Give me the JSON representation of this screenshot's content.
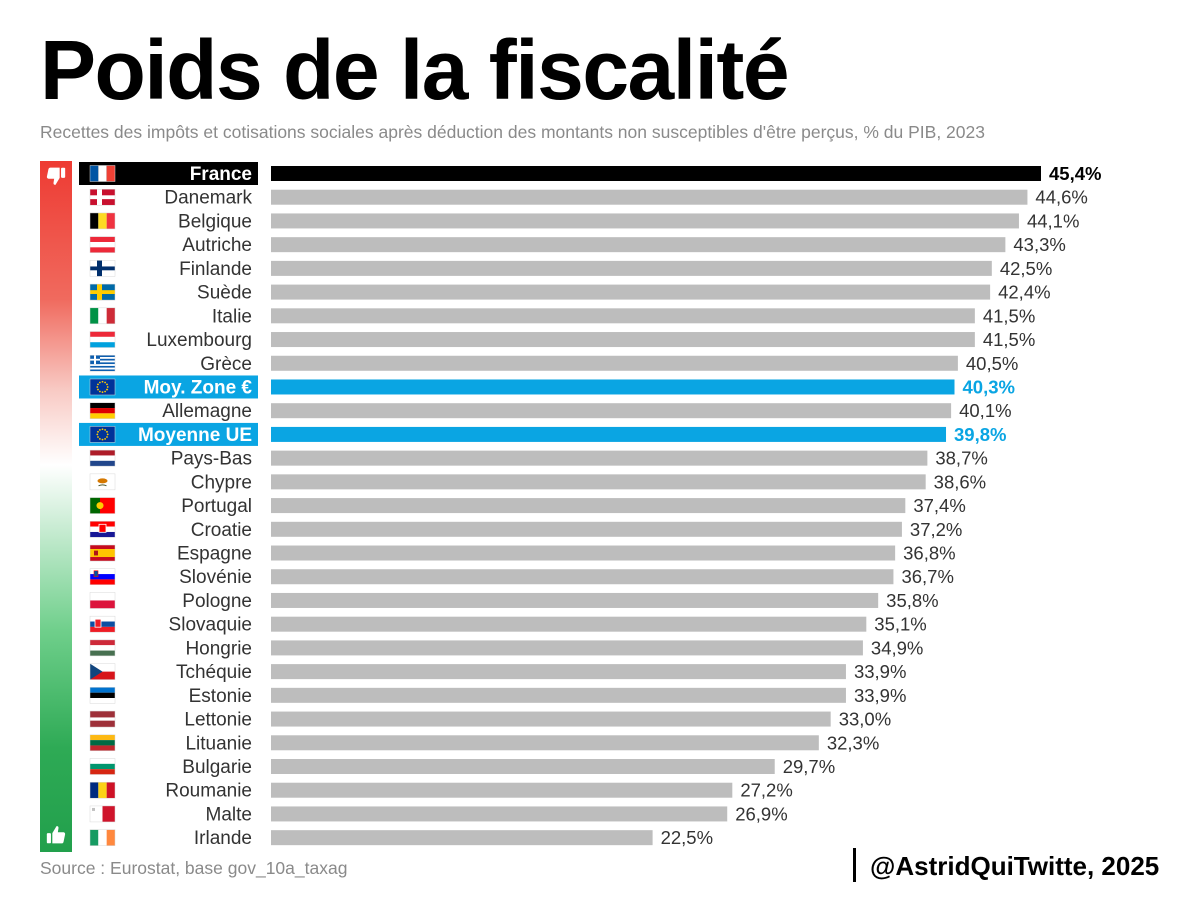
{
  "title": "Poids de la fiscalité",
  "subtitle": "Recettes des impôts et cotisations sociales après déduction des montants non susceptibles d'être perçus, % du PIB, 2023",
  "source": "Source : Eurostat, base gov_10a_taxag",
  "credit": "@AstridQuiTwitte, 2025",
  "scale_icons": {
    "top": "thumbs-down-icon",
    "bottom": "thumbs-up-icon"
  },
  "colors": {
    "default_bar": "#bdbdbd",
    "highlight_france": "#000000",
    "highlight_eu": "#0aa5e3",
    "scale_top": "#ee3b33",
    "scale_bottom": "#22a04c"
  },
  "chart_data": {
    "type": "bar",
    "orientation": "horizontal",
    "categories": [
      "France",
      "Danemark",
      "Belgique",
      "Autriche",
      "Finlande",
      "Suède",
      "Italie",
      "Luxembourg",
      "Grèce",
      "Moy. Zone €",
      "Allemagne",
      "Moyenne UE",
      "Pays-Bas",
      "Chypre",
      "Portugal",
      "Croatie",
      "Espagne",
      "Slovénie",
      "Pologne",
      "Slovaquie",
      "Hongrie",
      "Tchéquie",
      "Estonie",
      "Lettonie",
      "Lituanie",
      "Bulgarie",
      "Roumanie",
      "Malte",
      "Irlande"
    ],
    "values": [
      45.4,
      44.6,
      44.1,
      43.3,
      42.5,
      42.4,
      41.5,
      41.5,
      40.5,
      40.3,
      40.1,
      39.8,
      38.7,
      38.6,
      37.4,
      37.2,
      36.8,
      36.7,
      35.8,
      35.1,
      34.9,
      33.9,
      33.9,
      33.0,
      32.3,
      29.7,
      27.2,
      26.9,
      22.5
    ],
    "value_labels": [
      "45,4%",
      "44,6%",
      "44,1%",
      "43,3%",
      "42,5%",
      "42,4%",
      "41,5%",
      "41,5%",
      "40,5%",
      "40,3%",
      "40,1%",
      "39,8%",
      "38,7%",
      "38,6%",
      "37,4%",
      "37,2%",
      "36,8%",
      "36,7%",
      "35,8%",
      "35,1%",
      "34,9%",
      "33,9%",
      "33,9%",
      "33,0%",
      "32,3%",
      "29,7%",
      "27,2%",
      "26,9%",
      "22,5%"
    ],
    "highlight": [
      "france",
      "",
      "",
      "",
      "",
      "",
      "",
      "",
      "",
      "eu",
      "",
      "eu",
      "",
      "",
      "",
      "",
      "",
      "",
      "",
      "",
      "",
      "",
      "",
      "",
      "",
      "",
      "",
      "",
      ""
    ],
    "flags": [
      "fr",
      "dk",
      "be",
      "at",
      "fi",
      "se",
      "it",
      "lu",
      "gr",
      "eu",
      "de",
      "eu",
      "nl",
      "cy",
      "pt",
      "hr",
      "es",
      "si",
      "pl",
      "sk",
      "hu",
      "cz",
      "ee",
      "lv",
      "lt",
      "bg",
      "ro",
      "mt",
      "ie"
    ],
    "xlim": [
      0,
      45.4
    ],
    "grid": false,
    "legend": "none"
  }
}
